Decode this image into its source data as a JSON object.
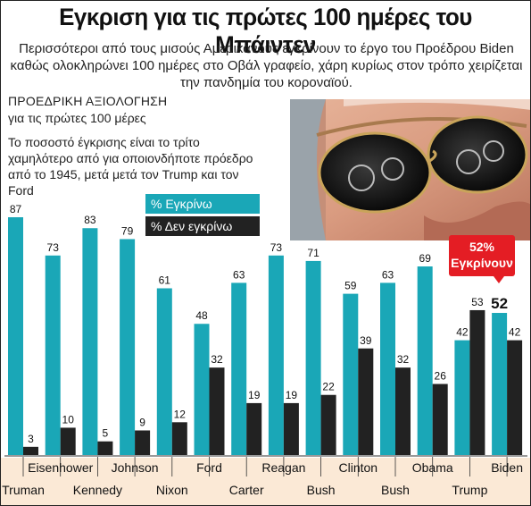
{
  "title": "Εγκριση για τις πρώτες 100 ημέρες του Μπάιντεν",
  "subtitle": "Περισσότεροι από τους μισούς Αμερικανούς εγκρίνουν το έργο του Προέδρου Biden καθώς ολοκληρώνει 100 ημέρες στο Οβάλ γραφείο, χάρη κυρίως στον τρόπο χειρίζεται την πανδημία του κοροναϊού.",
  "side_title": "ΠΡΟΕΔΡΙΚΗ ΑΞΙΟΛΟΓΗΣΗ",
  "side_subtitle": "για τις πρώτες 100 μέρες",
  "side_note": "Το ποσοστό έγκρισης είναι το τρίτο χαμηλότερο από για οποιονδήποτε πρόεδρο από το 1945, μετά μετά τον Trump και τον Ford",
  "callout": {
    "line1": "52%",
    "line2": "Εγκρίνουν"
  },
  "colors": {
    "approve": "#1aa7b7",
    "disapprove": "#222222",
    "highlight": "#e41d24",
    "label_band": "#fbe9d6"
  },
  "chart_data": {
    "type": "bar",
    "categories": [
      "Truman",
      "Eisenhower",
      "Kennedy",
      "Johnson",
      "Nixon",
      "Ford",
      "Carter",
      "Reagan",
      "Bush",
      "Clinton",
      "Bush",
      "Obama",
      "Trump",
      "Biden"
    ],
    "series": [
      {
        "name": "% Εγκρίνω",
        "values": [
          87,
          73,
          83,
          79,
          61,
          48,
          63,
          73,
          71,
          59,
          63,
          69,
          42,
          52
        ]
      },
      {
        "name": "% Δεν εγκρίνω",
        "values": [
          3,
          10,
          5,
          9,
          12,
          32,
          19,
          19,
          22,
          39,
          32,
          26,
          53,
          42
        ]
      }
    ],
    "ylim": [
      0,
      90
    ],
    "grid": false,
    "legend": "top-left of plot"
  }
}
